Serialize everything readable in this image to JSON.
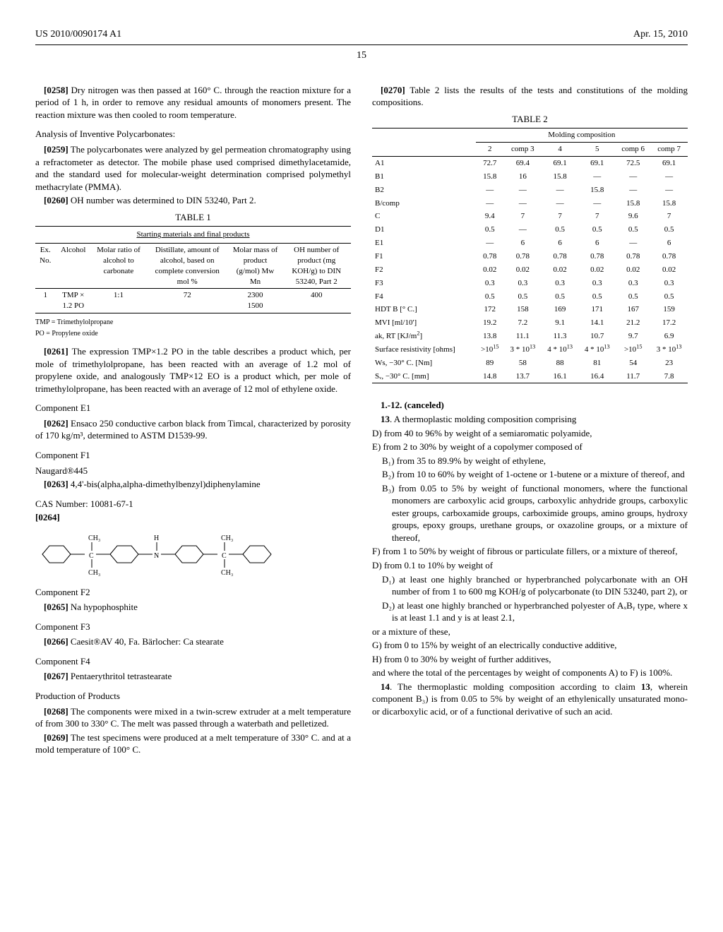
{
  "header": {
    "pubnum": "US 2010/0090174 A1",
    "date": "Apr. 15, 2010",
    "page": "15"
  },
  "left": {
    "p0258_num": "[0258]",
    "p0258": "Dry nitrogen was then passed at 160° C. through the reaction mixture for a period of 1 h, in order to remove any residual amounts of monomers present. The reaction mixture was then cooled to room temperature.",
    "analysis_title": "Analysis of Inventive Polycarbonates:",
    "p0259_num": "[0259]",
    "p0259": "The polycarbonates were analyzed by gel permeation chromatography using a refractometer as detector. The mobile phase used comprised dimethylacetamide, and the standard used for molecular-weight determination comprised polymethyl methacrylate (PMMA).",
    "p0260_num": "[0260]",
    "p0260": "OH number was determined to DIN 53240, Part 2.",
    "table1_title": "TABLE 1",
    "table1_subtitle": "Starting materials and final products",
    "table1": {
      "cols": [
        "Ex. No.",
        "Alcohol",
        "Molar ratio of alcohol to carbonate",
        "Distillate, amount of alcohol, based on complete conversion mol %",
        "Molar mass of product (g/mol) Mw Mn",
        "OH number of product (mg KOH/g) to DIN 53240, Part 2"
      ],
      "row": [
        "1",
        "TMP × 1.2 PO",
        "1:1",
        "72",
        "2300 1500",
        "400"
      ]
    },
    "table1_note1": "TMP = Trimethylolpropane",
    "table1_note2": "PO = Propylene oxide",
    "p0261_num": "[0261]",
    "p0261": "The expression TMP×1.2 PO in the table describes a product which, per mole of trimethylolpropane, has been reacted with an average of 1.2 mol of propylene oxide, and analogously TMP×12 EO is a product which, per mole of trimethylolpropane, has been reacted with an average of 12 mol of ethylene oxide.",
    "compE1": "Component E1",
    "p0262_num": "[0262]",
    "p0262": "Ensaco 250 conductive carbon black from Timcal, characterized by porosity of 170 kg/m³, determined to ASTM D1539-99.",
    "compF1": "Component F1",
    "naugard": "Naugard®445",
    "p0263_num": "[0263]",
    "p0263": "4,4'-bis(alpha,alpha-dimethylbenzyl)diphenylamine",
    "cas": "CAS Number: 10081-67-1",
    "p0264_num": "[0264]",
    "compF2": "Component F2",
    "p0265_num": "[0265]",
    "p0265": "Na hypophosphite",
    "compF3": "Component F3",
    "p0266_num": "[0266]",
    "p0266": "Caesit®AV 40, Fa. Bärlocher: Ca stearate",
    "compF4": "Component F4",
    "p0267_num": "[0267]",
    "p0267": "Pentaerythritol tetrastearate",
    "prod_title": "Production of Products",
    "p0268_num": "[0268]",
    "p0268": "The components were mixed in a twin-screw extruder at a melt temperature of from 300 to 330° C. The melt was passed through a waterbath and pelletized.",
    "p0269_num": "[0269]",
    "p0269": "The test specimens were produced at a melt temperature of 330° C. and at a mold temperature of 100° C."
  },
  "right": {
    "p0270_num": "[0270]",
    "p0270": "Table 2 lists the results of the tests and constitutions of the molding compositions.",
    "table2_title": "TABLE 2",
    "table2": {
      "group_label": "Molding composition",
      "cols": [
        "",
        "2",
        "comp 3",
        "4",
        "5",
        "comp 6",
        "comp 7"
      ],
      "rows": [
        [
          "A1",
          "72.7",
          "69.4",
          "69.1",
          "69.1",
          "72.5",
          "69.1"
        ],
        [
          "B1",
          "15.8",
          "16",
          "15.8",
          "—",
          "—",
          "—"
        ],
        [
          "B2",
          "—",
          "—",
          "—",
          "15.8",
          "—",
          "—"
        ],
        [
          "B/comp",
          "—",
          "—",
          "—",
          "—",
          "15.8",
          "15.8"
        ],
        [
          "C",
          "9.4",
          "7",
          "7",
          "7",
          "9.6",
          "7"
        ],
        [
          "D1",
          "0.5",
          "—",
          "0.5",
          "0.5",
          "0.5",
          "0.5"
        ],
        [
          "E1",
          "—",
          "6",
          "6",
          "6",
          "—",
          "6"
        ],
        [
          "F1",
          "0.78",
          "0.78",
          "0.78",
          "0.78",
          "0.78",
          "0.78"
        ],
        [
          "F2",
          "0.02",
          "0.02",
          "0.02",
          "0.02",
          "0.02",
          "0.02"
        ],
        [
          "F3",
          "0.3",
          "0.3",
          "0.3",
          "0.3",
          "0.3",
          "0.3"
        ],
        [
          "F4",
          "0.5",
          "0.5",
          "0.5",
          "0.5",
          "0.5",
          "0.5"
        ],
        [
          "HDT B [° C.]",
          "172",
          "158",
          "169",
          "171",
          "167",
          "159"
        ],
        [
          "MVI [ml/10']",
          "19.2",
          "7.2",
          "9.1",
          "14.1",
          "21.2",
          "17.2"
        ],
        [
          "ak, RT [KJ/m²]",
          "13.8",
          "11.1",
          "11.3",
          "10.7",
          "9.7",
          "6.9"
        ],
        [
          "Surface resistivity [ohms]",
          ">10¹⁵",
          "3 * 10¹³",
          "4 * 10¹³",
          "4 * 10¹³",
          ">10¹⁵",
          "3 * 10¹³"
        ],
        [
          "Ws, −30° C. [Nm]",
          "89",
          "58",
          "88",
          "81",
          "54",
          "23"
        ],
        [
          "Sᵥ, −30° C. [mm]",
          "14.8",
          "13.7",
          "16.1",
          "16.4",
          "11.7",
          "7.8"
        ]
      ]
    },
    "claims_cancel": "1.-12. (canceled)",
    "claim13_intro": "13. A thermoplastic molding composition comprising",
    "claim13_D": "D) from 40 to 96% by weight of a semiaromatic polyamide,",
    "claim13_E": "E) from 2 to 30% by weight of a copolymer composed of",
    "claim13_B1": "B₁) from 35 to 89.9% by weight of ethylene,",
    "claim13_B2": "B₂) from 10 to 60% by weight of 1-octene or 1-butene or a mixture of thereof, and",
    "claim13_B3": "B₃) from 0.05 to 5% by weight of functional monomers, where the functional monomers are carboxylic acid groups, carboxylic anhydride groups, carboxylic ester groups, carboxamide groups, carboximide groups, amino groups, hydroxy groups, epoxy groups, urethane groups, or oxazoline groups, or a mixture of thereof,",
    "claim13_F": "F) from 1 to 50% by weight of fibrous or particulate fillers, or a mixture of thereof,",
    "claim13_D2": "D) from 0.1 to 10% by weight of",
    "claim13_D2_1": "D₁) at least one highly branched or hyperbranched polycarbonate with an OH number of from 1 to 600 mg KOH/g of polycarbonate (to DIN 53240, part 2), or",
    "claim13_D2_2": "D₂) at least one highly branched or hyperbranched polyester of AₓBᵧ type, where x is at least 1.1 and y is at least 2.1,",
    "claim13_mix": "or a mixture of these,",
    "claim13_G": "G) from 0 to 15% by weight of an electrically conductive additive,",
    "claim13_H": "H) from 0 to 30% by weight of further additives,",
    "claim13_total": "and where the total of the percentages by weight of components A) to F) is 100%.",
    "claim14": "14. The thermoplastic molding composition according to claim 13, wherein component B₃) is from 0.05 to 5% by weight of an ethylenically unsaturated mono- or dicarboxylic acid, or of a functional derivative of such an acid."
  }
}
